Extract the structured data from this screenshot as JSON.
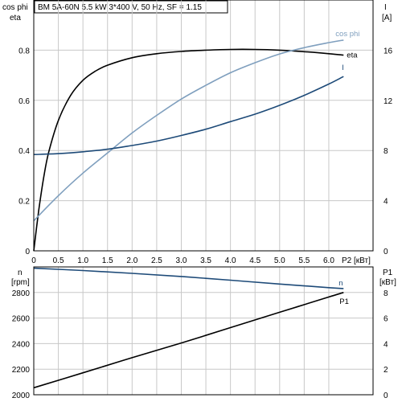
{
  "title": "BM 5A-60N   5.5 kW   3*400 V, 50 Hz, SF = 1.15",
  "colors": {
    "eta": "#000000",
    "cos_phi": "#7f9fbe",
    "current": "#1d4a78",
    "speed": "#1d4a78",
    "p1": "#000000",
    "grid": "#c8c8c8",
    "axis": "#000000"
  },
  "chart_data": [
    {
      "type": "line",
      "name": "efficiency-chart",
      "left_axis": {
        "label_line1": "cos phi",
        "label_line2": "eta",
        "ylim": [
          0,
          1.0
        ],
        "ticks": [
          0,
          0.2,
          0.4,
          0.6,
          0.8
        ],
        "tick_labels": [
          "0",
          "0.2",
          "0.4",
          "0.6",
          "0.8"
        ]
      },
      "right_axis": {
        "label_line1": "I",
        "label_line2": "[A]",
        "ylim": [
          0,
          20
        ],
        "ticks": [
          0,
          4,
          8,
          12,
          16
        ],
        "tick_labels": [
          "0",
          "4",
          "8",
          "12",
          "16"
        ]
      },
      "x_axis": {
        "xlim": [
          0,
          6.9
        ],
        "ticks": [
          0,
          0.5,
          1.0,
          1.5,
          2.0,
          2.5,
          3.0,
          3.5,
          4.0,
          4.5,
          5.0,
          5.5,
          6.0
        ],
        "tick_labels": [
          "0",
          "0.5",
          "1.0",
          "1.5",
          "2.0",
          "2.5",
          "3.0",
          "3.5",
          "4.0",
          "4.5",
          "5.0",
          "5.5",
          "6.0"
        ],
        "unit_label": "P2 [кВт]"
      },
      "grid": true,
      "series": [
        {
          "key": "eta",
          "name": "eta",
          "axis": "left",
          "x": [
            0,
            0.1,
            0.2,
            0.3,
            0.5,
            0.75,
            1.0,
            1.25,
            1.5,
            2.0,
            2.5,
            3.0,
            3.5,
            4.0,
            4.5,
            5.0,
            5.5,
            6.0,
            6.3
          ],
          "y": [
            0,
            0.16,
            0.29,
            0.39,
            0.52,
            0.62,
            0.68,
            0.716,
            0.74,
            0.77,
            0.786,
            0.795,
            0.8,
            0.803,
            0.803,
            0.8,
            0.794,
            0.786,
            0.78
          ]
        },
        {
          "key": "cos_phi",
          "name": "cos phi",
          "axis": "left",
          "x": [
            0,
            0.5,
            1.0,
            1.5,
            2.0,
            2.5,
            3.0,
            3.5,
            4.0,
            4.5,
            5.0,
            5.5,
            6.0,
            6.3
          ],
          "y": [
            0.12,
            0.22,
            0.31,
            0.39,
            0.47,
            0.54,
            0.605,
            0.66,
            0.71,
            0.75,
            0.785,
            0.81,
            0.83,
            0.84
          ]
        },
        {
          "key": "current",
          "name": "I",
          "axis": "right",
          "x": [
            0,
            0.5,
            1.0,
            1.5,
            2.0,
            2.5,
            3.0,
            3.5,
            4.0,
            4.5,
            5.0,
            5.5,
            6.0,
            6.3
          ],
          "y": [
            7.68,
            7.75,
            7.9,
            8.1,
            8.4,
            8.75,
            9.2,
            9.7,
            10.3,
            10.9,
            11.6,
            12.4,
            13.3,
            13.9
          ]
        }
      ]
    },
    {
      "type": "line",
      "name": "speed-power-chart",
      "left_axis": {
        "label_line1": "n",
        "label_line2": "[rpm]",
        "ylim": [
          2000,
          3000
        ],
        "ticks": [
          2000,
          2200,
          2400,
          2600,
          2800
        ],
        "tick_labels": [
          "2000",
          "2200",
          "2400",
          "2600",
          "2800"
        ]
      },
      "right_axis": {
        "label_line1": "P1",
        "label_line2": "[кВт]",
        "ylim": [
          0,
          10
        ],
        "ticks": [
          0,
          2,
          4,
          6,
          8
        ],
        "tick_labels": [
          "0",
          "2",
          "4",
          "6",
          "8"
        ]
      },
      "x_axis": {
        "xlim": [
          0,
          6.9
        ]
      },
      "grid": true,
      "series": [
        {
          "key": "speed",
          "name": "n",
          "axis": "left",
          "x": [
            0,
            1.0,
            2.0,
            3.0,
            4.0,
            5.0,
            6.0,
            6.3
          ],
          "y": [
            2990,
            2972,
            2950,
            2925,
            2896,
            2866,
            2838,
            2830
          ]
        },
        {
          "key": "p1",
          "name": "P1",
          "axis": "right",
          "x": [
            0,
            1.0,
            2.0,
            3.0,
            4.0,
            5.0,
            6.0,
            6.3
          ],
          "y": [
            0.55,
            1.72,
            2.9,
            4.05,
            5.25,
            6.45,
            7.65,
            8.0
          ]
        }
      ]
    }
  ]
}
